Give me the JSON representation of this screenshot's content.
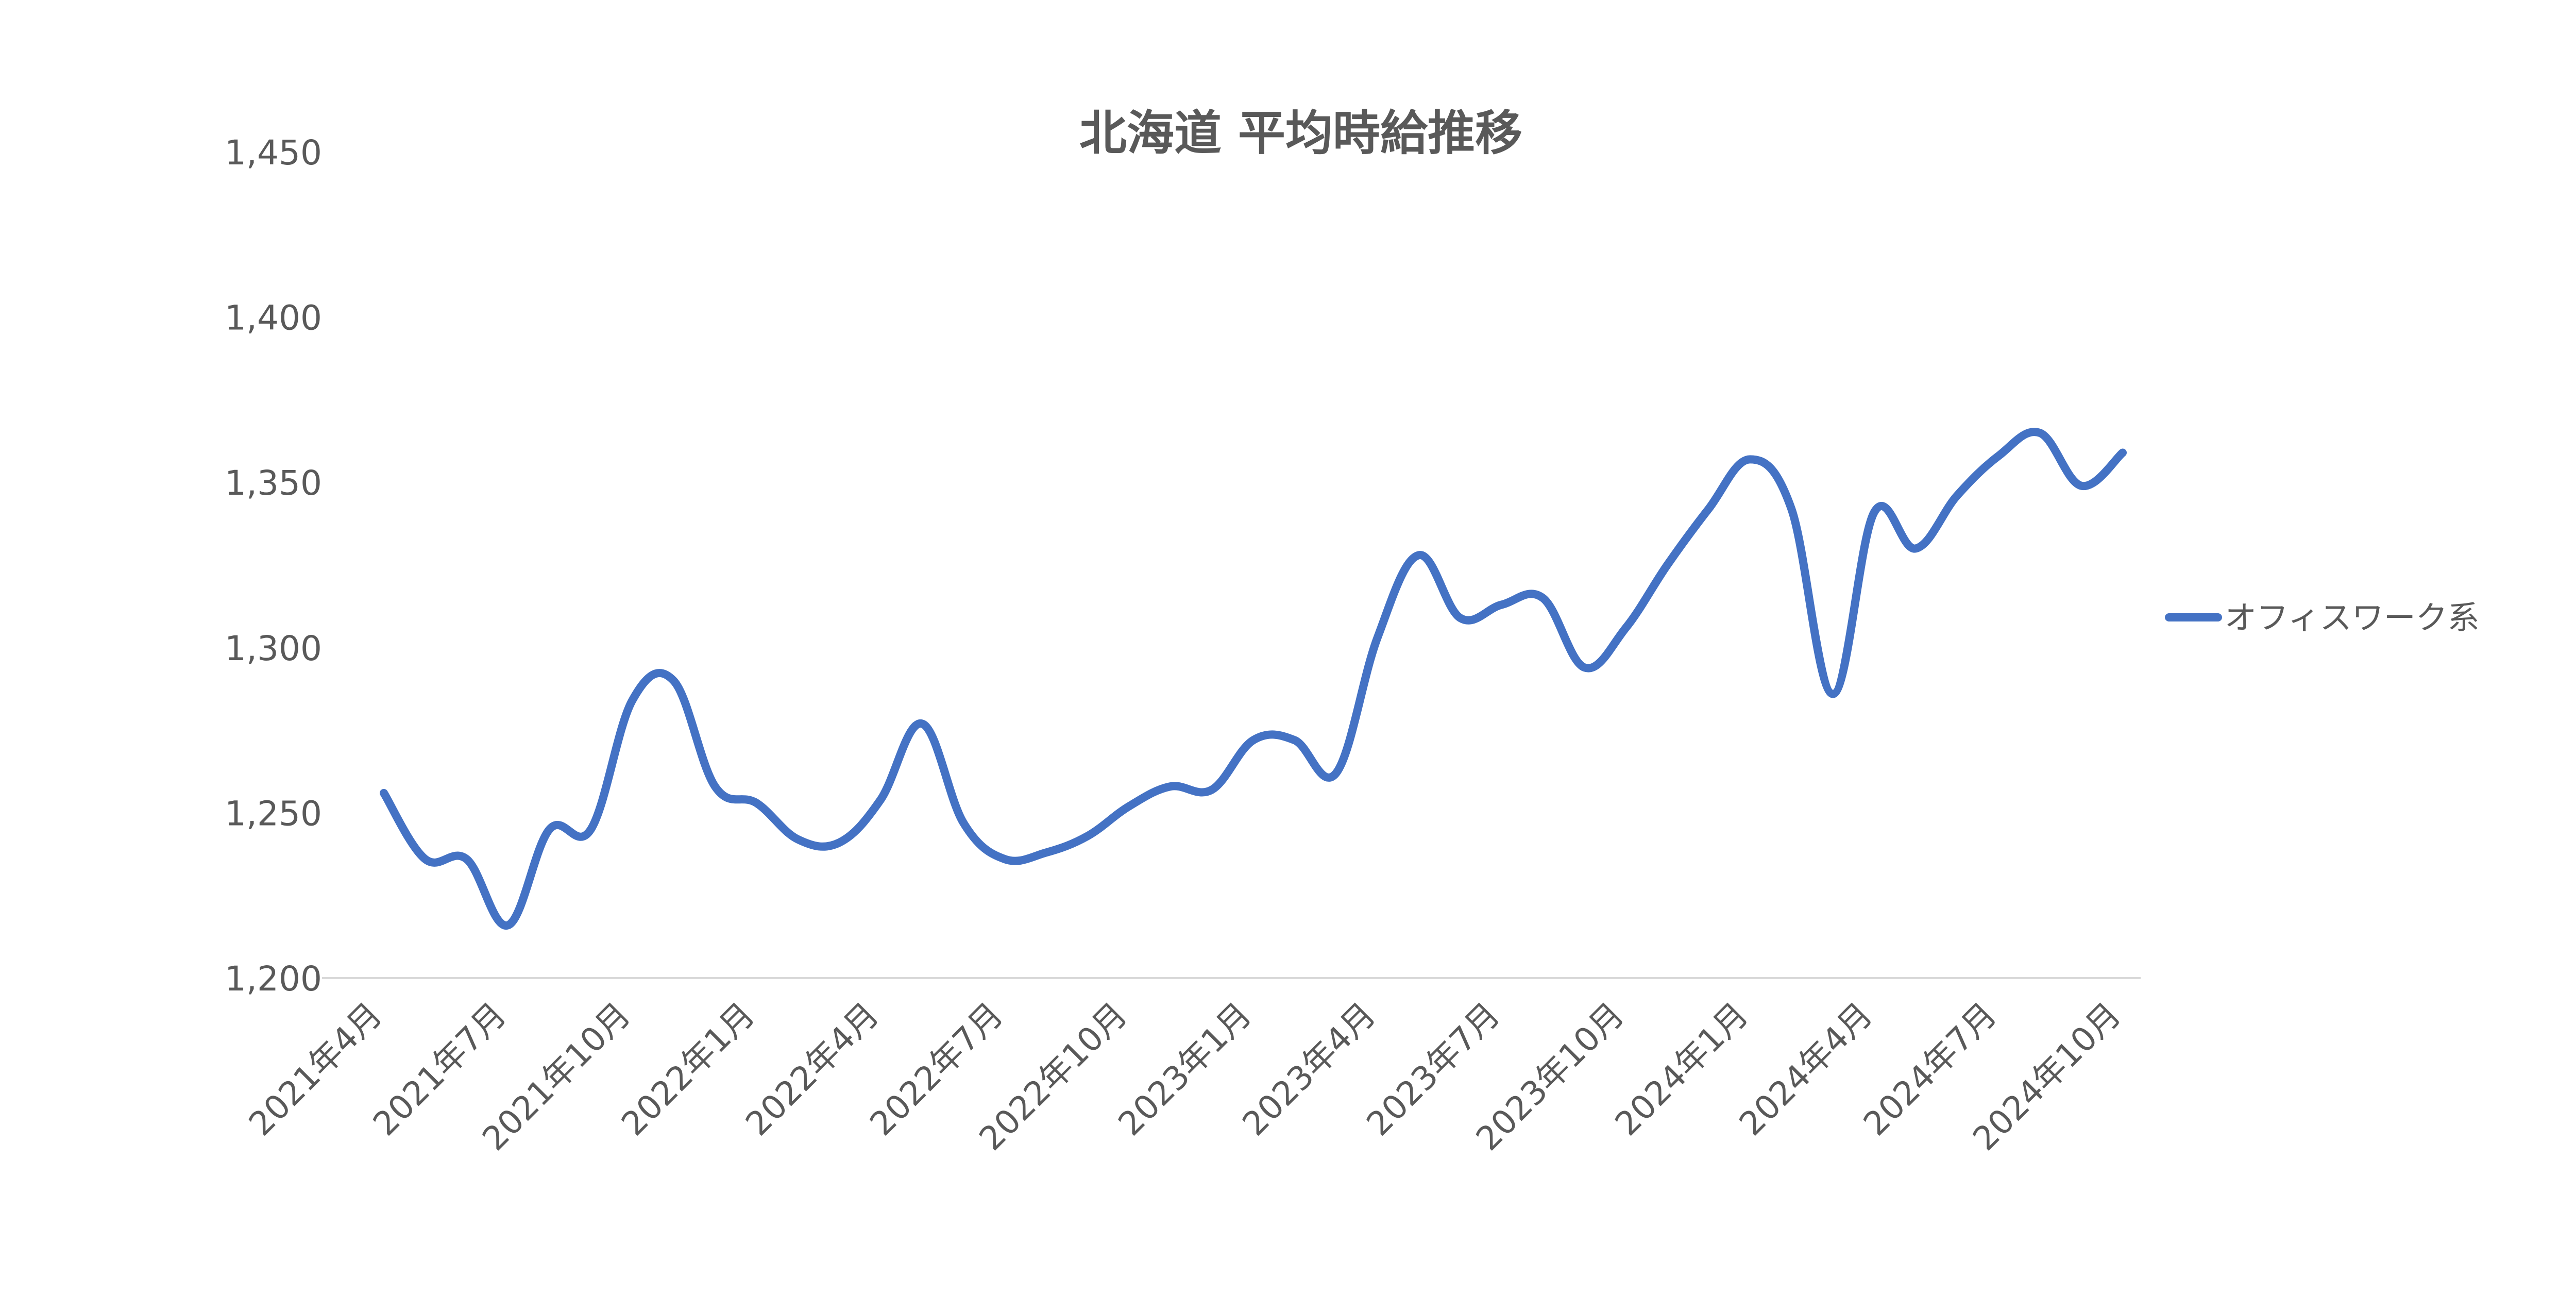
{
  "chart_data": {
    "type": "line",
    "title": "北海道 平均時給推移",
    "xlabel": "",
    "ylabel": "",
    "ylim": [
      1200,
      1450
    ],
    "y_ticks": [
      1200,
      1250,
      1300,
      1350,
      1400,
      1450
    ],
    "y_tick_labels": [
      "1,200",
      "1,250",
      "1,300",
      "1,350",
      "1,400",
      "1,450"
    ],
    "grid": "bottom axis line only",
    "legend_position": "right",
    "x": [
      "2021年4月",
      "2021年5月",
      "2021年6月",
      "2021年7月",
      "2021年8月",
      "2021年9月",
      "2021年10月",
      "2021年11月",
      "2021年12月",
      "2022年1月",
      "2022年2月",
      "2022年3月",
      "2022年4月",
      "2022年5月",
      "2022年6月",
      "2022年7月",
      "2022年8月",
      "2022年9月",
      "2022年10月",
      "2022年11月",
      "2022年12月",
      "2023年1月",
      "2023年2月",
      "2023年3月",
      "2023年4月",
      "2023年5月",
      "2023年6月",
      "2023年7月",
      "2023年8月",
      "2023年9月",
      "2023年10月",
      "2023年11月",
      "2023年12月",
      "2024年1月",
      "2024年2月",
      "2024年3月",
      "2024年4月",
      "2024年5月",
      "2024年6月",
      "2024年7月",
      "2024年8月",
      "2024年9月",
      "2024年10月"
    ],
    "x_tick_labels": [
      "2021年4月",
      "2021年7月",
      "2021年10月",
      "2022年1月",
      "2022年4月",
      "2022年7月",
      "2022年10月",
      "2023年1月",
      "2023年4月",
      "2023年7月",
      "2023年10月",
      "2024年1月",
      "2024年4月",
      "2024年7月",
      "2024年10月"
    ],
    "series": [
      {
        "name": "オフィスワーク系",
        "color": "#4472C4",
        "values": [
          1256,
          1236,
          1236,
          1216,
          1245,
          1245,
          1284,
          1290,
          1258,
          1253,
          1242,
          1241,
          1254,
          1277,
          1247,
          1236,
          1238,
          1243,
          1252,
          1258,
          1257,
          1272,
          1272,
          1262,
          1303,
          1328,
          1309,
          1313,
          1315,
          1294,
          1306,
          1325,
          1342,
          1357,
          1342,
          1286,
          1341,
          1330,
          1346,
          1358,
          1365,
          1349,
          1359
        ]
      }
    ]
  }
}
